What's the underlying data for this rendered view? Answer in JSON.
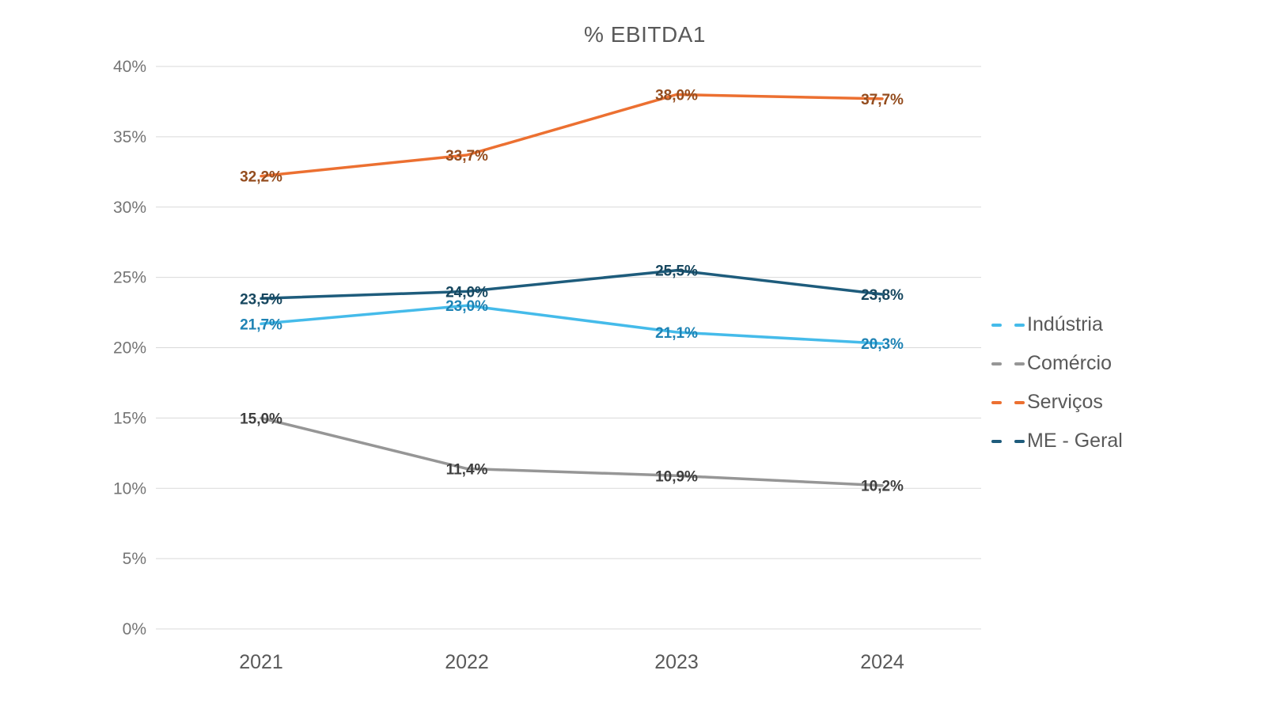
{
  "chart_data": {
    "type": "line",
    "title": "% EBITDA1",
    "categories": [
      "2021",
      "2022",
      "2023",
      "2024"
    ],
    "series": [
      {
        "name": "Indústria",
        "values": [
          21.7,
          23.0,
          21.1,
          20.3
        ],
        "labels": [
          "21,7%",
          "23,0%",
          "21,1%",
          "20,3%"
        ],
        "color": "#45BBEA",
        "label_color": "#1F83B4"
      },
      {
        "name": "Comércio",
        "values": [
          15.0,
          11.4,
          10.9,
          10.2
        ],
        "labels": [
          "15,0%",
          "11,4%",
          "10,9%",
          "10,2%"
        ],
        "color": "#969696",
        "label_color": "#3F3F3F"
      },
      {
        "name": "Serviços",
        "values": [
          32.2,
          33.7,
          38.0,
          37.7
        ],
        "labels": [
          "32,2%",
          "33,7%",
          "38,0%",
          "37,7%"
        ],
        "color": "#EC7031",
        "label_color": "#944D1F"
      },
      {
        "name": "ME - Geral",
        "values": [
          23.5,
          24.0,
          25.5,
          23.8
        ],
        "labels": [
          "23,5%",
          "24,0%",
          "25,5%",
          "23,8%"
        ],
        "color": "#1E5C7C",
        "label_color": "#17475F"
      }
    ],
    "y_axis": {
      "min": 0,
      "max": 40,
      "step": 5,
      "tick_labels": [
        "0%",
        "5%",
        "10%",
        "15%",
        "20%",
        "25%",
        "30%",
        "35%",
        "40%"
      ]
    },
    "legend_position": "right",
    "grid": true,
    "colors": {
      "title": "#595959",
      "axis_text": "#757575",
      "gridline": "#D9D9D9"
    }
  }
}
